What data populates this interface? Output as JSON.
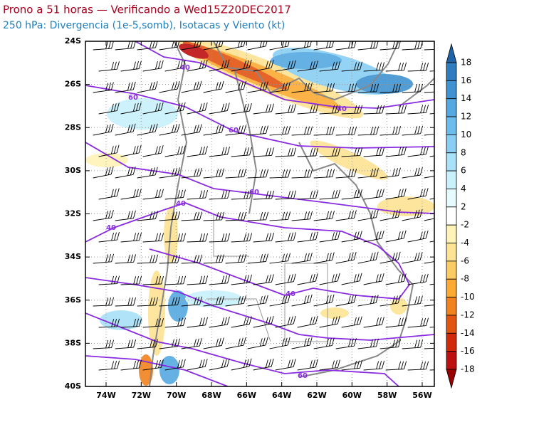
{
  "header": {
    "title": "Prono a 51 horas — Verificando a Wed15Z20DEC2017",
    "subtitle": "250 hPa: Divergencia (1e-5,somb), Isotacas y Viento (kt)"
  },
  "map": {
    "lat_labels": [
      "24S",
      "26S",
      "28S",
      "30S",
      "32S",
      "34S",
      "36S",
      "38S",
      "40S"
    ],
    "lon_labels": [
      "74W",
      "72W",
      "70W",
      "68W",
      "66W",
      "64W",
      "62W",
      "60W",
      "58W",
      "56W"
    ],
    "isotach_labels": [
      40,
      60,
      40,
      60,
      60,
      40,
      40,
      40,
      60
    ]
  },
  "colorbar": {
    "labels": [
      18,
      16,
      14,
      12,
      10,
      8,
      6,
      4,
      2,
      -2,
      -4,
      -6,
      -8,
      -10,
      -12,
      -14,
      -16,
      -18
    ],
    "colors": [
      "#1f63a8",
      "#2f7dbf",
      "#3f93d0",
      "#55a9e0",
      "#6dbdec",
      "#8acff3",
      "#a9e1f8",
      "#c9f1fb",
      "#e6fbfd",
      "#ffffff",
      "#fff3b8",
      "#fde394",
      "#fccb64",
      "#fbaa34",
      "#f2821e",
      "#e25412",
      "#d02a0a",
      "#bd1010",
      "#9a0000"
    ]
  }
}
